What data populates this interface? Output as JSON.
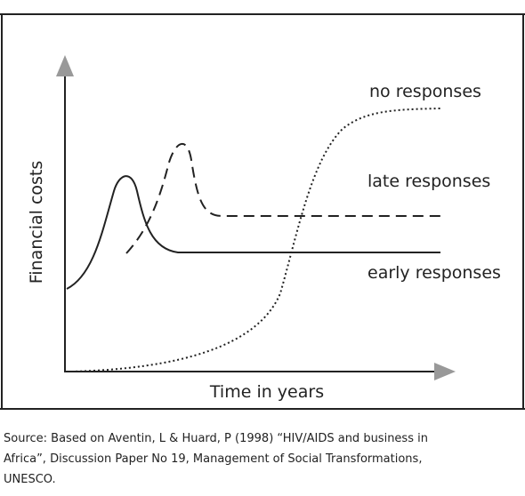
{
  "axes": {
    "y_label": "Financial costs",
    "x_label": "Time in years"
  },
  "curves": [
    {
      "label": "no responses"
    },
    {
      "label": "late responses"
    },
    {
      "label": "early responses"
    }
  ],
  "source": [
    "Source: Based on Aventin, L & Huard, P (1998) “HIV/AIDS and business in",
    "Africa”, Discussion Paper No 19, Management of Social Transformations,",
    "UNESCO."
  ]
}
